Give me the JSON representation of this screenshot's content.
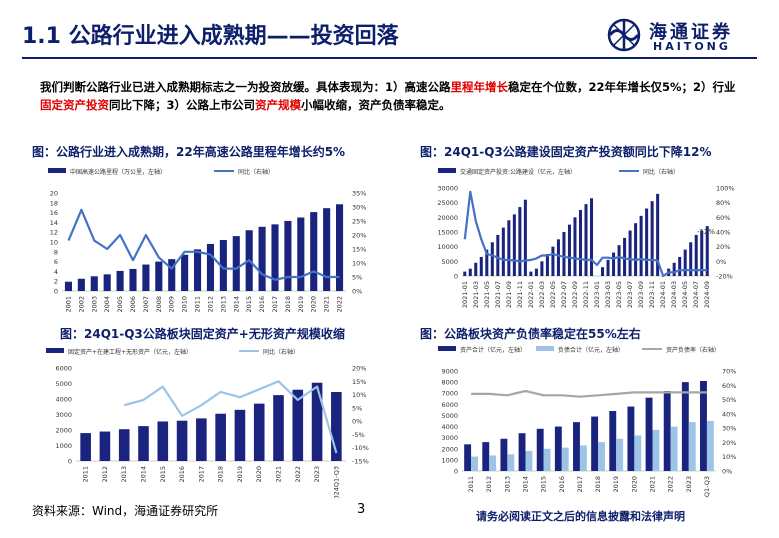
{
  "header": {
    "title": "1.1 公路行业进入成熟期——投资回落",
    "logo_cn": "海通证券",
    "logo_en": "HAITONG"
  },
  "intro": {
    "p1": "我们判断公路行业已进入成熟期标志之一为投资放缓。具体表现为：1）高速公路",
    "r1": "里程年增长",
    "p2": "稳定在个位数，22年年增长仅5%；2）行业",
    "r2": "固定资产投资",
    "p3": "同比下降；3）公路上市公司",
    "r3": "资产规模",
    "p4": "小幅收缩，资产负债率稳定。"
  },
  "footer": {
    "source": "资料来源：Wind，海通证券研究所",
    "page": "3",
    "disclaimer": "请务必阅读正文之后的信息披露和法律声明"
  },
  "colors": {
    "navy": "#0d1f6b",
    "bar": "#1a237e",
    "line": "#4472c4",
    "light": "#9dc3e6",
    "gray": "#a6a6a6",
    "red": "#e00000"
  },
  "chart_data": [
    {
      "id": "c1",
      "type": "bar",
      "title": "图：公路行业进入成熟期，22年高速公路里程年增长约5%",
      "legend": [
        "中国高速公路里程（万公里，左轴）",
        "同比（右轴）"
      ],
      "categories": [
        "2001",
        "2002",
        "2003",
        "2004",
        "2005",
        "2006",
        "2007",
        "2008",
        "2009",
        "2010",
        "2011",
        "2012",
        "2013",
        "2014",
        "2015",
        "2016",
        "2017",
        "2018",
        "2019",
        "2020",
        "2021",
        "2022"
      ],
      "series": [
        {
          "name": "中国高速公路里程（万公里，左轴）",
          "axis": "left",
          "kind": "bar",
          "values": [
            1.9,
            2.5,
            3.0,
            3.4,
            4.1,
            4.5,
            5.4,
            6.0,
            6.5,
            7.4,
            8.5,
            9.6,
            10.4,
            11.2,
            12.4,
            13.1,
            13.6,
            14.3,
            15.0,
            16.1,
            16.9,
            17.7
          ]
        },
        {
          "name": "同比（右轴）",
          "axis": "right",
          "kind": "line",
          "values": [
            18,
            29,
            18,
            15,
            20,
            11,
            20,
            12,
            8,
            14,
            14,
            13,
            8,
            8,
            11,
            6,
            4,
            5,
            5,
            7,
            5,
            5
          ]
        }
      ],
      "ylim": [
        0,
        20
      ],
      "yticks": [
        0,
        2,
        4,
        6,
        8,
        10,
        12,
        14,
        16,
        18,
        20
      ],
      "ylim_right": [
        0,
        35
      ],
      "yticks_right": [
        "0%",
        "5%",
        "10%",
        "15%",
        "20%",
        "25%",
        "30%",
        "35%"
      ]
    },
    {
      "id": "c2",
      "type": "bar",
      "title": "图：24Q1-Q3公路建设固定资产投资额同比下降12%",
      "legend": [
        "交通固定资产投资:公路建设（亿元，左轴）",
        "同比（右轴）"
      ],
      "annotation": "-12%",
      "categories": [
        "2021-01",
        "2021-02",
        "2021-03",
        "2021-04",
        "2021-05",
        "2021-06",
        "2021-07",
        "2021-08",
        "2021-09",
        "2021-10",
        "2021-11",
        "2021-12",
        "2022-01",
        "2022-02",
        "2022-03",
        "2022-04",
        "2022-05",
        "2022-06",
        "2022-07",
        "2022-08",
        "2022-09",
        "2022-10",
        "2022-11",
        "2022-12",
        "2023-01",
        "2023-02",
        "2023-03",
        "2023-04",
        "2023-05",
        "2023-06",
        "2023-07",
        "2023-08",
        "2023-09",
        "2023-10",
        "2023-11",
        "2023-12",
        "2024-01",
        "2024-02",
        "2024-03",
        "2024-04",
        "2024-05",
        "2024-06",
        "2024-07",
        "2024-08",
        "2024-09"
      ],
      "x_labels": [
        "2021-01",
        "2021-03",
        "2021-05",
        "2021-07",
        "2021-09",
        "2021-11",
        "2022-01",
        "2022-03",
        "2022-05",
        "2022-07",
        "2022-09",
        "2022-11",
        "2023-01",
        "2023-03",
        "2023-05",
        "2023-07",
        "2023-09",
        "2023-11",
        "2024-01",
        "2024-03",
        "2024-05",
        "2024-07",
        "2024-09"
      ],
      "series": [
        {
          "name": "交通固定资产投资:公路建设（亿元，左轴）",
          "axis": "left",
          "kind": "bar",
          "values": [
            1500,
            2500,
            4500,
            6500,
            9000,
            11500,
            14000,
            16500,
            19000,
            21000,
            23500,
            26000,
            1500,
            2500,
            5000,
            7500,
            10000,
            12500,
            15000,
            17500,
            20000,
            22500,
            24500,
            26500,
            0,
            3000,
            5500,
            8000,
            10500,
            13000,
            15500,
            18000,
            20500,
            23000,
            25500,
            28000,
            0,
            2500,
            4500,
            6500,
            9000,
            11500,
            14000,
            15500,
            17000
          ]
        },
        {
          "name": "同比（右轴）",
          "axis": "right",
          "kind": "line",
          "values": [
            30,
            95,
            55,
            30,
            10,
            8,
            5,
            2,
            2,
            1,
            0,
            1,
            2,
            4,
            8,
            8,
            10,
            8,
            6,
            5,
            4,
            3,
            2,
            2,
            -5,
            5,
            5,
            4,
            6,
            4,
            3,
            2,
            3,
            2,
            2,
            1,
            -20,
            -15,
            -15,
            -12,
            -12,
            -12,
            -12,
            -12,
            -12
          ]
        }
      ],
      "ylim": [
        0,
        30000
      ],
      "yticks": [
        0,
        5000,
        10000,
        15000,
        20000,
        25000,
        30000
      ],
      "ylim_right": [
        -20,
        100
      ],
      "yticks_right": [
        "-20%",
        "0%",
        "20%",
        "40%",
        "60%",
        "80%",
        "100%"
      ]
    },
    {
      "id": "c3",
      "type": "bar",
      "title": "图：24Q1-Q3公路板块固定资产+无形资产规模收缩",
      "legend": [
        "固定资产+在建工程+无形资产（亿元，左轴）",
        "同比（右轴）"
      ],
      "categories": [
        "2011",
        "2012",
        "2013",
        "2014",
        "2015",
        "2016",
        "2017",
        "2018",
        "2019",
        "2020",
        "2021",
        "2022",
        "2023",
        "2024Q1-Q3"
      ],
      "series": [
        {
          "name": "固定资产+在建工程+无形资产（亿元，左轴）",
          "axis": "left",
          "kind": "bar",
          "values": [
            1800,
            1900,
            2050,
            2250,
            2550,
            2600,
            2750,
            3050,
            3300,
            3700,
            4250,
            4600,
            5050,
            4450
          ]
        },
        {
          "name": "同比（右轴）",
          "axis": "right",
          "kind": "line",
          "values": [
            null,
            null,
            6,
            8,
            13,
            2,
            6,
            11,
            9,
            12,
            15,
            8,
            13,
            -12
          ]
        }
      ],
      "ylim": [
        0,
        6000
      ],
      "yticks": [
        0,
        1000,
        2000,
        3000,
        4000,
        5000,
        6000
      ],
      "ylim_right": [
        -15,
        20
      ],
      "yticks_right": [
        "-15%",
        "-10%",
        "-5%",
        "0%",
        "5%",
        "10%",
        "15%",
        "20%"
      ]
    },
    {
      "id": "c4",
      "type": "bar",
      "title": "图：公路板块资产负债率稳定在55%左右",
      "legend": [
        "资产合计（亿元，左轴）",
        "负债合计（亿元，左轴）",
        "资产负债率（右轴）"
      ],
      "categories": [
        "2011",
        "2012",
        "2013",
        "2014",
        "2015",
        "2016",
        "2017",
        "2018",
        "2019",
        "2020",
        "2021",
        "2022",
        "2023",
        "2024Q1-Q3"
      ],
      "series": [
        {
          "name": "资产合计（亿元，左轴）",
          "axis": "left",
          "kind": "bar",
          "values": [
            2400,
            2600,
            2900,
            3400,
            3800,
            4000,
            4400,
            4900,
            5400,
            5800,
            6600,
            7200,
            8000,
            8100
          ]
        },
        {
          "name": "负债合计（亿元，左轴）",
          "axis": "left",
          "kind": "bar",
          "values": [
            1300,
            1400,
            1500,
            1800,
            2000,
            2100,
            2300,
            2600,
            2900,
            3200,
            3700,
            4000,
            4400,
            4500
          ]
        },
        {
          "name": "资产负债率（右轴）",
          "axis": "right",
          "kind": "line",
          "values": [
            54,
            54,
            53,
            56,
            53,
            53,
            52,
            53,
            54,
            55,
            55,
            55,
            55,
            55
          ]
        }
      ],
      "ylim": [
        0,
        9000
      ],
      "yticks": [
        0,
        1000,
        2000,
        3000,
        4000,
        5000,
        6000,
        7000,
        8000,
        9000
      ],
      "ylim_right": [
        0,
        70
      ],
      "yticks_right": [
        "0%",
        "10%",
        "20%",
        "30%",
        "40%",
        "50%",
        "60%",
        "70%"
      ]
    }
  ]
}
